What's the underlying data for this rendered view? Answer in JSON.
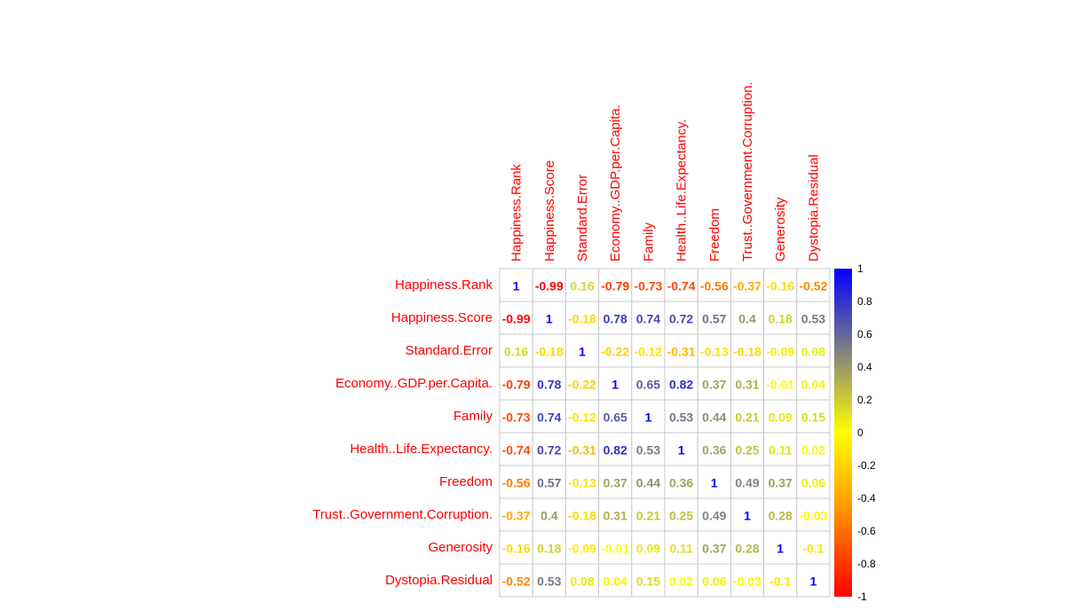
{
  "chart_data": {
    "type": "heatmap",
    "variables": [
      "Happiness.Rank",
      "Happiness.Score",
      "Standard.Error",
      "Economy..GDP.per.Capita.",
      "Family",
      "Health..Life.Expectancy.",
      "Freedom",
      "Trust..Government.Corruption.",
      "Generosity",
      "Dystopia.Residual"
    ],
    "matrix": [
      [
        1,
        -0.99,
        0.16,
        -0.79,
        -0.73,
        -0.74,
        -0.56,
        -0.37,
        -0.16,
        -0.52
      ],
      [
        -0.99,
        1,
        -0.18,
        0.78,
        0.74,
        0.72,
        0.57,
        0.4,
        0.18,
        0.53
      ],
      [
        0.16,
        -0.18,
        1,
        -0.22,
        -0.12,
        -0.31,
        -0.13,
        -0.18,
        -0.09,
        0.08
      ],
      [
        -0.79,
        0.78,
        -0.22,
        1,
        0.65,
        0.82,
        0.37,
        0.31,
        -0.01,
        0.04
      ],
      [
        -0.73,
        0.74,
        -0.12,
        0.65,
        1,
        0.53,
        0.44,
        0.21,
        0.09,
        0.15
      ],
      [
        -0.74,
        0.72,
        -0.31,
        0.82,
        0.53,
        1,
        0.36,
        0.25,
        0.11,
        0.02
      ],
      [
        -0.56,
        0.57,
        -0.13,
        0.37,
        0.44,
        0.36,
        1,
        0.49,
        0.37,
        0.06
      ],
      [
        -0.37,
        0.4,
        -0.18,
        0.31,
        0.21,
        0.25,
        0.49,
        1,
        0.28,
        -0.03
      ],
      [
        -0.16,
        0.18,
        -0.09,
        -0.01,
        0.09,
        0.11,
        0.37,
        0.28,
        1,
        -0.1
      ],
      [
        -0.52,
        0.53,
        0.08,
        0.04,
        0.15,
        0.02,
        0.06,
        -0.03,
        -0.1,
        1
      ]
    ],
    "value_labels": [
      [
        "1",
        "-0.99",
        "0.16",
        "-0.79",
        "-0.73",
        "-0.74",
        "-0.56",
        "-0.37",
        "-0.16",
        "-0.52"
      ],
      [
        "-0.99",
        "1",
        "-0.18",
        "0.78",
        "0.74",
        "0.72",
        "0.57",
        "0.4",
        "0.18",
        "0.53"
      ],
      [
        "0.16",
        "-0.18",
        "1",
        "-0.22",
        "-0.12",
        "-0.31",
        "-0.13",
        "-0.18",
        "-0.09",
        "0.08"
      ],
      [
        "-0.79",
        "0.78",
        "-0.22",
        "1",
        "0.65",
        "0.82",
        "0.37",
        "0.31",
        "-0.01",
        "0.04"
      ],
      [
        "-0.73",
        "0.74",
        "-0.12",
        "0.65",
        "1",
        "0.53",
        "0.44",
        "0.21",
        "0.09",
        "0.15"
      ],
      [
        "-0.74",
        "0.72",
        "-0.31",
        "0.82",
        "0.53",
        "1",
        "0.36",
        "0.25",
        "0.11",
        "0.02"
      ],
      [
        "-0.56",
        "0.57",
        "-0.13",
        "0.37",
        "0.44",
        "0.36",
        "1",
        "0.49",
        "0.37",
        "0.06"
      ],
      [
        "-0.37",
        "0.4",
        "-0.18",
        "0.31",
        "0.21",
        "0.25",
        "0.49",
        "1",
        "0.28",
        "-0.03"
      ],
      [
        "-0.16",
        "0.18",
        "-0.09",
        "-0.01",
        "0.09",
        "0.11",
        "0.37",
        "0.28",
        "1",
        "-0.1"
      ],
      [
        "-0.52",
        "0.53",
        "0.08",
        "0.04",
        "0.15",
        "0.02",
        "0.06",
        "-0.03",
        "-0.1",
        "1"
      ]
    ],
    "color_scale": {
      "range": [
        -1,
        1
      ],
      "stops": [
        {
          "value": -1,
          "color": "#ff0000"
        },
        {
          "value": -0.4,
          "color": "#ffa500"
        },
        {
          "value": 0,
          "color": "#ffff00"
        },
        {
          "value": 0.5,
          "color": "#808080"
        },
        {
          "value": 1,
          "color": "#0000ff"
        }
      ],
      "ticks": [
        1,
        0.8,
        0.6,
        0.4,
        0.2,
        0,
        -0.2,
        -0.4,
        -0.6,
        -0.8,
        -1
      ],
      "tick_labels": [
        "1",
        "0.8",
        "0.6",
        "0.4",
        "0.2",
        "0",
        "-0.2",
        "-0.4",
        "-0.6",
        "-0.8",
        "-1"
      ]
    },
    "label_color": "#ff0000",
    "grid_color": "#c8c8c8"
  }
}
